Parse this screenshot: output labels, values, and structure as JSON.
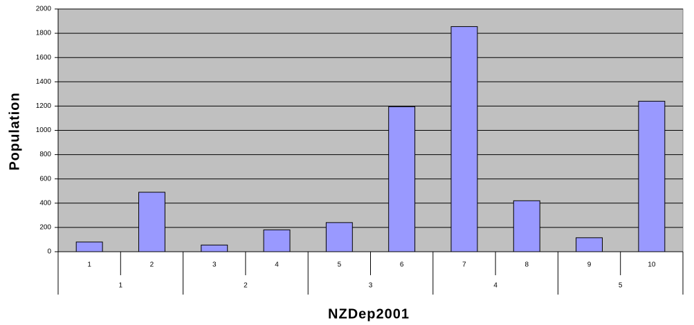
{
  "chart_data": {
    "type": "bar",
    "x_label": "NZDep2001",
    "y_label": "Population",
    "categories": [
      "1",
      "2",
      "3",
      "4",
      "5",
      "6",
      "7",
      "8",
      "9",
      "10"
    ],
    "groups": [
      "1",
      "2",
      "3",
      "4",
      "5"
    ],
    "values": [
      80,
      490,
      55,
      180,
      240,
      1195,
      1855,
      420,
      115,
      1240
    ],
    "color": "#9999ff",
    "ylim": [
      0,
      2000
    ],
    "yticks": [
      0,
      200,
      400,
      600,
      800,
      1000,
      1200,
      1400,
      1600,
      1800,
      2000
    ],
    "grid": true
  }
}
